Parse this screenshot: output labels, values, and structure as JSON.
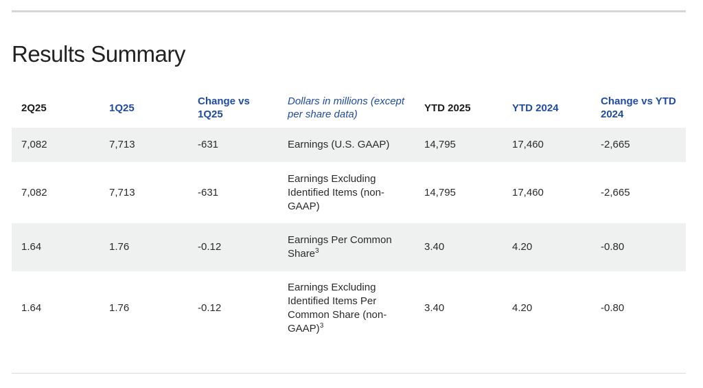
{
  "title": "Results Summary",
  "table": {
    "headers": {
      "c2q25": "2Q25",
      "c1q25": "1Q25",
      "change_q": "Change vs 1Q25",
      "desc": "Dollars in millions (except per share data)",
      "ytd2025": "YTD 2025",
      "ytd2024": "YTD 2024",
      "change_ytd": "Change vs YTD 2024"
    },
    "rows": [
      {
        "q2": "7,082",
        "q1": "7,713",
        "change_q": "-631",
        "label": "Earnings (U.S. GAAP)",
        "footnote": "",
        "ytd2025": "14,795",
        "ytd2024": "17,460",
        "change_ytd": "-2,665"
      },
      {
        "q2": "7,082",
        "q1": "7,713",
        "change_q": "-631",
        "label": "Earnings Excluding Identified Items (non-GAAP)",
        "footnote": "",
        "ytd2025": "14,795",
        "ytd2024": "17,460",
        "change_ytd": "-2,665"
      },
      {
        "q2": "1.64",
        "q1": "1.76",
        "change_q": "-0.12",
        "label": "Earnings Per Common Share",
        "footnote": "3",
        "ytd2025": "3.40",
        "ytd2024": "4.20",
        "change_ytd": "-0.80"
      },
      {
        "q2": "1.64",
        "q1": "1.76",
        "change_q": "-0.12",
        "label": "Earnings Excluding Identified Items Per Common Share (non-GAAP)",
        "footnote": "3",
        "ytd2025": "3.40",
        "ytd2024": "4.20",
        "change_ytd": "-0.80"
      }
    ]
  },
  "colors": {
    "accent_blue": "#1f4ba5",
    "shaded_row": "#eff0f0",
    "rule": "#d6d6d6"
  }
}
